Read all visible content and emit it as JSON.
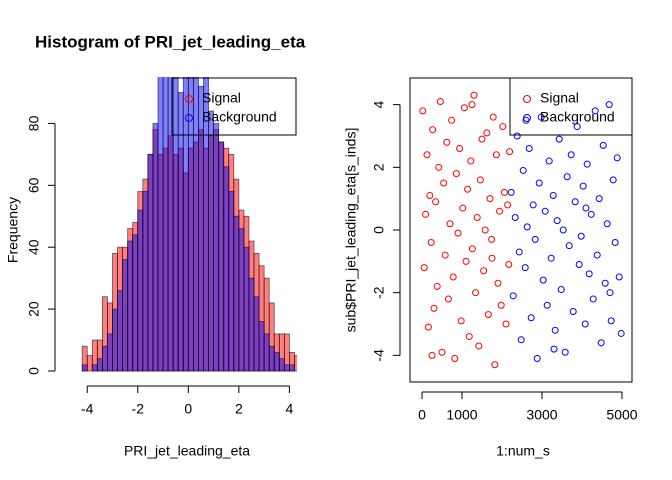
{
  "chart_data": [
    {
      "type": "histogram",
      "title": "Histogram of PRI_jet_leading_eta",
      "x_label": "PRI_jet_leading_eta",
      "y_label": "Frequency",
      "bins": [
        -4.2,
        -4.0,
        -3.8,
        -3.6,
        -3.4,
        -3.2,
        -3.0,
        -2.8,
        -2.6,
        -2.4,
        -2.2,
        -2.0,
        -1.8,
        -1.6,
        -1.4,
        -1.2,
        -1.0,
        -0.8,
        -0.6,
        -0.4,
        -0.2,
        0.0,
        0.2,
        0.4,
        0.6,
        0.8,
        1.0,
        1.2,
        1.4,
        1.6,
        1.8,
        2.0,
        2.2,
        2.4,
        2.6,
        2.8,
        3.0,
        3.2,
        3.4,
        3.6,
        3.8,
        4.0,
        4.2,
        4.4
      ],
      "series": [
        {
          "name": "Signal",
          "color": "#ff0000",
          "values": [
            8,
            5,
            10,
            10,
            24,
            22,
            38,
            40,
            40,
            46,
            48,
            58,
            62,
            70,
            78,
            70,
            72,
            76,
            70,
            72,
            64,
            72,
            74,
            78,
            72,
            76,
            78,
            74,
            72,
            70,
            62,
            52,
            50,
            42,
            38,
            34,
            30,
            22,
            12,
            12,
            12,
            6,
            5
          ]
        },
        {
          "name": "Background",
          "color": "#0000ff",
          "values": [
            2,
            0,
            2,
            4,
            8,
            12,
            20,
            26,
            36,
            42,
            44,
            52,
            58,
            70,
            80,
            98,
            100,
            98,
            100,
            90,
            98,
            100,
            96,
            92,
            98,
            84,
            80,
            74,
            66,
            58,
            50,
            46,
            40,
            30,
            24,
            16,
            12,
            8,
            6,
            4,
            2,
            2,
            0
          ]
        }
      ],
      "xlim": [
        -4.8,
        4.3
      ],
      "ylim": [
        0,
        95
      ],
      "xticks": [
        -4,
        -2,
        0,
        2,
        4
      ],
      "yticks": [
        0,
        20,
        40,
        60,
        80
      ]
    },
    {
      "type": "scatter",
      "x_label": "1:num_s",
      "y_label": "sub$PRI_jet_leading_eta[s_inds]",
      "series": [
        {
          "name": "Signal",
          "color": "#ff0000",
          "x": [
            20,
            55,
            90,
            125,
            160,
            195,
            230,
            265,
            300,
            340,
            380,
            420,
            460,
            500,
            540,
            580,
            620,
            660,
            700,
            740,
            780,
            820,
            860,
            900,
            940,
            980,
            1020,
            1060,
            1100,
            1140,
            1180,
            1220,
            1260,
            1300,
            1340,
            1380,
            1420,
            1460,
            1500,
            1540,
            1580,
            1620,
            1660,
            1700,
            1740,
            1780,
            1820,
            1860,
            1900,
            1940,
            1980,
            2020,
            2060,
            2100,
            2140,
            2170,
            2190,
            250,
            1250,
            1750
          ],
          "y": [
            3.8,
            -1.2,
            0.5,
            2.4,
            -3.1,
            1.1,
            -0.4,
            3.2,
            -2.5,
            0.9,
            -1.8,
            2.0,
            4.1,
            -3.9,
            1.5,
            -0.8,
            2.8,
            -2.2,
            0.2,
            3.5,
            -1.5,
            -4.1,
            1.8,
            -0.1,
            2.6,
            -2.9,
            0.7,
            3.9,
            -1.0,
            1.3,
            -3.4,
            2.2,
            -0.6,
            4.3,
            -2.0,
            0.4,
            -3.7,
            1.6,
            2.9,
            -1.3,
            0.0,
            3.1,
            -2.7,
            1.0,
            -0.3,
            3.6,
            -4.3,
            2.4,
            -1.7,
            0.6,
            -2.4,
            3.3,
            1.2,
            -3.0,
            0.8,
            -1.1,
            2.5,
            -4.0,
            4.0,
            -0.9
          ]
        },
        {
          "name": "Background",
          "color": "#0000ff",
          "x": [
            2230,
            2280,
            2330,
            2380,
            2430,
            2480,
            2530,
            2580,
            2630,
            2680,
            2730,
            2780,
            2830,
            2880,
            2930,
            2980,
            3030,
            3080,
            3130,
            3180,
            3230,
            3280,
            3330,
            3380,
            3430,
            3480,
            3530,
            3580,
            3630,
            3680,
            3730,
            3780,
            3830,
            3880,
            3930,
            3980,
            4030,
            4080,
            4130,
            4180,
            4230,
            4280,
            4330,
            4380,
            4430,
            4480,
            4530,
            4580,
            4630,
            4680,
            4730,
            4780,
            4830,
            4880,
            4930,
            4980,
            2600,
            3300,
            4100,
            4700
          ],
          "y": [
            1.2,
            -2.1,
            0.4,
            3.0,
            -0.7,
            -3.5,
            1.9,
            -1.2,
            0.1,
            2.6,
            -2.8,
            0.8,
            -0.3,
            -4.1,
            1.5,
            3.6,
            -1.6,
            0.6,
            -2.4,
            2.2,
            -0.9,
            1.1,
            -3.2,
            0.3,
            2.9,
            -1.9,
            0.0,
            -3.9,
            1.7,
            -0.5,
            2.4,
            -2.6,
            0.9,
            3.3,
            -1.1,
            -0.2,
            1.4,
            -3.0,
            2.1,
            -1.4,
            0.5,
            -2.2,
            3.8,
            -0.8,
            1.0,
            -3.6,
            2.7,
            -1.7,
            0.2,
            4.0,
            -2.9,
            1.6,
            -0.4,
            2.3,
            -1.5,
            -3.3,
            3.5,
            -3.8,
            0.7,
            -2.0
          ]
        }
      ],
      "xlim": [
        -300,
        5250
      ],
      "ylim": [
        -4.85,
        4.85
      ],
      "xticks": [
        0,
        1000,
        3000,
        5000
      ],
      "yticks": [
        -4,
        -2,
        0,
        2,
        4
      ]
    }
  ]
}
